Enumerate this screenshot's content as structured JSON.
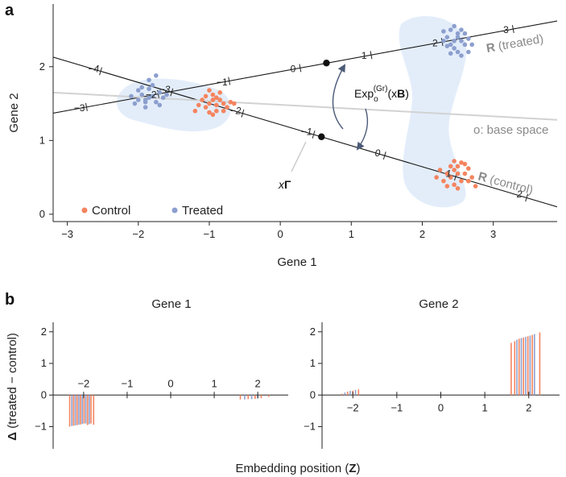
{
  "panels": {
    "a": "a",
    "b": "b"
  },
  "colors": {
    "control": "#f4845f",
    "treated": "#8c9fce",
    "blob": "#e3edfa",
    "base_line": "#d2d2d2",
    "arrow": "#4b5a78",
    "label_grey": "#8a8a8a"
  },
  "panel_a": {
    "annotations": {
      "treated_line_bold": "R",
      "treated_line_rest": " (treated)",
      "control_line_bold": "R",
      "control_line_rest": " (control)",
      "base_space": "o: base space",
      "exp_main": "Exp",
      "exp_sub": "o",
      "exp_sup": "(Gr)",
      "exp_arg_open": "(x",
      "exp_arg_bold": "B",
      "exp_arg_close": ")",
      "xgamma_x": "x",
      "xgamma_g": "Γ"
    },
    "legend": [
      {
        "label": "Control",
        "color": "#f4845f"
      },
      {
        "label": "Treated",
        "color": "#8c9fce"
      }
    ]
  },
  "chart_data": [
    {
      "type": "scatter",
      "panel": "a",
      "title": "",
      "xlabel": "Gene 1",
      "ylabel": "Gene 2",
      "xlim": [
        -3.2,
        3.9
      ],
      "ylim": [
        -0.1,
        2.85
      ],
      "xticks": [
        "−3",
        "−2",
        "−1",
        "0",
        "1",
        "2",
        "3"
      ],
      "yticks": [
        "0",
        "1",
        "2"
      ],
      "grid": false,
      "legend_position": "bottom-left",
      "lines": [
        {
          "name": "R (treated)",
          "from": [
            -3.2,
            1.37
          ],
          "to": [
            3.9,
            2.62
          ],
          "color": "#1a1a1a",
          "tick_labels": [
            {
              "label": "−3",
              "pos": [
                -2.83,
                1.44
              ]
            },
            {
              "label": "−2",
              "pos": [
                -1.82,
                1.62
              ]
            },
            {
              "label": "−1",
              "pos": [
                -0.82,
                1.79
              ]
            },
            {
              "label": "0",
              "pos": [
                0.18,
                1.97
              ]
            },
            {
              "label": "1",
              "pos": [
                1.18,
                2.15
              ]
            },
            {
              "label": "2",
              "pos": [
                2.18,
                2.32
              ]
            },
            {
              "label": "3",
              "pos": [
                3.18,
                2.5
              ]
            }
          ]
        },
        {
          "name": "R (control)",
          "from": [
            -3.2,
            2.13
          ],
          "to": [
            3.9,
            0.1
          ],
          "color": "#1a1a1a",
          "tick_labels": [
            {
              "label": "−4",
              "pos": [
                -2.63,
                1.97
              ]
            },
            {
              "label": "−3",
              "pos": [
                -1.63,
                1.69
              ]
            },
            {
              "label": "−2",
              "pos": [
                -0.63,
                1.4
              ]
            },
            {
              "label": "−1",
              "pos": [
                0.37,
                1.12
              ]
            },
            {
              "label": "0",
              "pos": [
                1.37,
                0.83
              ]
            },
            {
              "label": "1",
              "pos": [
                2.37,
                0.55
              ]
            },
            {
              "label": "2",
              "pos": [
                3.37,
                0.27
              ]
            }
          ]
        },
        {
          "name": "o: base space",
          "from": [
            -3.2,
            1.65
          ],
          "to": [
            3.9,
            1.28
          ],
          "color": "#d2d2d2"
        }
      ],
      "points_on_lines": [
        {
          "line": "R (treated)",
          "at": [
            0.65,
            2.05
          ]
        },
        {
          "line": "R (control)",
          "at": [
            0.58,
            1.05
          ]
        }
      ],
      "series": [
        {
          "name": "Control",
          "color": "#f4845f",
          "points": [
            [
              -0.95,
              1.55
            ],
            [
              -1.0,
              1.5
            ],
            [
              -0.9,
              1.48
            ],
            [
              -0.85,
              1.55
            ],
            [
              -1.05,
              1.45
            ],
            [
              -0.8,
              1.5
            ],
            [
              -0.95,
              1.62
            ],
            [
              -1.1,
              1.55
            ],
            [
              -0.75,
              1.45
            ],
            [
              -0.9,
              1.4
            ],
            [
              -1.0,
              1.38
            ],
            [
              -0.85,
              1.65
            ],
            [
              -1.15,
              1.48
            ],
            [
              -0.7,
              1.52
            ],
            [
              -0.95,
              1.35
            ],
            [
              -1.05,
              1.6
            ],
            [
              -0.8,
              1.4
            ],
            [
              -1.2,
              1.4
            ],
            [
              -0.65,
              1.5
            ],
            [
              -0.9,
              1.58
            ],
            [
              -1.0,
              1.68
            ],
            [
              2.45,
              0.6
            ],
            [
              2.5,
              0.55
            ],
            [
              2.4,
              0.5
            ],
            [
              2.55,
              0.45
            ],
            [
              2.35,
              0.55
            ],
            [
              2.6,
              0.55
            ],
            [
              2.5,
              0.65
            ],
            [
              2.3,
              0.45
            ],
            [
              2.65,
              0.45
            ],
            [
              2.45,
              0.4
            ],
            [
              2.55,
              0.7
            ],
            [
              2.4,
              0.65
            ],
            [
              2.7,
              0.5
            ],
            [
              2.25,
              0.6
            ],
            [
              2.5,
              0.35
            ],
            [
              2.6,
              0.68
            ],
            [
              2.35,
              0.38
            ],
            [
              2.75,
              0.38
            ],
            [
              2.2,
              0.5
            ],
            [
              2.45,
              0.72
            ],
            [
              2.65,
              0.62
            ]
          ]
        },
        {
          "name": "Treated",
          "color": "#8c9fce",
          "points": [
            [
              -1.85,
              1.58
            ],
            [
              -1.9,
              1.55
            ],
            [
              -1.8,
              1.6
            ],
            [
              -1.75,
              1.52
            ],
            [
              -1.95,
              1.62
            ],
            [
              -2.0,
              1.55
            ],
            [
              -1.7,
              1.65
            ],
            [
              -1.85,
              1.7
            ],
            [
              -2.05,
              1.5
            ],
            [
              -1.65,
              1.58
            ],
            [
              -1.9,
              1.45
            ],
            [
              -1.8,
              1.75
            ],
            [
              -2.1,
              1.6
            ],
            [
              -1.7,
              1.48
            ],
            [
              -1.95,
              1.72
            ],
            [
              -1.85,
              1.82
            ],
            [
              -1.75,
              1.88
            ],
            [
              -2.0,
              1.68
            ],
            [
              -1.6,
              1.62
            ],
            [
              -1.9,
              1.52
            ],
            [
              2.45,
              2.35
            ],
            [
              2.5,
              2.4
            ],
            [
              2.4,
              2.3
            ],
            [
              2.55,
              2.35
            ],
            [
              2.35,
              2.4
            ],
            [
              2.6,
              2.3
            ],
            [
              2.5,
              2.45
            ],
            [
              2.3,
              2.35
            ],
            [
              2.45,
              2.25
            ],
            [
              2.55,
              2.5
            ],
            [
              2.4,
              2.5
            ],
            [
              2.65,
              2.38
            ],
            [
              2.5,
              2.2
            ],
            [
              2.35,
              2.28
            ],
            [
              2.6,
              2.45
            ],
            [
              2.45,
              2.55
            ],
            [
              2.55,
              2.15
            ],
            [
              2.3,
              2.48
            ],
            [
              2.7,
              2.3
            ],
            [
              2.4,
              2.18
            ],
            [
              2.65,
              2.2
            ]
          ]
        }
      ]
    },
    {
      "type": "bar",
      "panel": "b",
      "title": "Gene 1",
      "ylabel": "Δ (treated − control)",
      "xlim": [
        -2.7,
        2.7
      ],
      "ylim": [
        -1.7,
        2.3
      ],
      "xticks": [
        "−2",
        "−1",
        "0",
        "1",
        "2"
      ],
      "yticks": [
        "−1",
        "0",
        "1",
        "2"
      ],
      "grid": false,
      "bars": [
        {
          "x": -2.32,
          "value": -1.0,
          "color": "#f4845f"
        },
        {
          "x": -2.27,
          "value": -0.98,
          "color": "#8c9fce"
        },
        {
          "x": -2.23,
          "value": -0.97,
          "color": "#f4845f"
        },
        {
          "x": -2.19,
          "value": -0.96,
          "color": "#8c9fce"
        },
        {
          "x": -2.15,
          "value": -0.95,
          "color": "#f4845f"
        },
        {
          "x": -2.11,
          "value": -0.94,
          "color": "#8c9fce"
        },
        {
          "x": -2.07,
          "value": -0.93,
          "color": "#f4845f"
        },
        {
          "x": -2.03,
          "value": -0.92,
          "color": "#8c9fce"
        },
        {
          "x": -1.99,
          "value": -0.9,
          "color": "#f4845f"
        },
        {
          "x": -1.95,
          "value": -0.9,
          "color": "#8c9fce"
        },
        {
          "x": -1.91,
          "value": -0.95,
          "color": "#f4845f"
        },
        {
          "x": -1.87,
          "value": -0.92,
          "color": "#8c9fce"
        },
        {
          "x": -1.83,
          "value": -0.9,
          "color": "#f4845f"
        },
        {
          "x": -1.77,
          "value": -0.94,
          "color": "#f4845f"
        },
        {
          "x": 1.6,
          "value": -0.14,
          "color": "#f4845f"
        },
        {
          "x": 1.7,
          "value": -0.14,
          "color": "#8c9fce"
        },
        {
          "x": 1.78,
          "value": -0.13,
          "color": "#f4845f"
        },
        {
          "x": 1.86,
          "value": -0.13,
          "color": "#8c9fce"
        },
        {
          "x": 1.94,
          "value": -0.12,
          "color": "#f4845f"
        },
        {
          "x": 2.0,
          "value": -0.11,
          "color": "#8c9fce"
        },
        {
          "x": 2.08,
          "value": -0.1,
          "color": "#f4845f"
        },
        {
          "x": 2.25,
          "value": -0.06,
          "color": "#f4845f"
        }
      ]
    },
    {
      "type": "bar",
      "panel": "b",
      "title": "Gene 2",
      "ylabel": "",
      "xlim": [
        -2.7,
        2.7
      ],
      "ylim": [
        -1.7,
        2.3
      ],
      "xticks": [
        "−2",
        "−1",
        "0",
        "1",
        "2"
      ],
      "yticks": [
        "−1",
        "0",
        "1",
        "2"
      ],
      "grid": false,
      "bars": [
        {
          "x": -2.25,
          "value": 0.04,
          "color": "#f4845f"
        },
        {
          "x": -2.18,
          "value": 0.08,
          "color": "#8c9fce"
        },
        {
          "x": -2.12,
          "value": 0.11,
          "color": "#f4845f"
        },
        {
          "x": -2.06,
          "value": 0.13,
          "color": "#8c9fce"
        },
        {
          "x": -2.0,
          "value": 0.14,
          "color": "#f4845f"
        },
        {
          "x": -1.94,
          "value": 0.16,
          "color": "#8c9fce"
        },
        {
          "x": -1.87,
          "value": 0.18,
          "color": "#f4845f"
        },
        {
          "x": 1.6,
          "value": 1.65,
          "color": "#f4845f"
        },
        {
          "x": 1.68,
          "value": 1.7,
          "color": "#f4845f"
        },
        {
          "x": 1.73,
          "value": 1.75,
          "color": "#8c9fce"
        },
        {
          "x": 1.78,
          "value": 1.78,
          "color": "#f4845f"
        },
        {
          "x": 1.83,
          "value": 1.8,
          "color": "#8c9fce"
        },
        {
          "x": 1.88,
          "value": 1.82,
          "color": "#f4845f"
        },
        {
          "x": 1.93,
          "value": 1.84,
          "color": "#8c9fce"
        },
        {
          "x": 1.98,
          "value": 1.86,
          "color": "#f4845f"
        },
        {
          "x": 2.03,
          "value": 1.88,
          "color": "#8c9fce"
        },
        {
          "x": 2.08,
          "value": 1.9,
          "color": "#f4845f"
        },
        {
          "x": 2.13,
          "value": 1.93,
          "color": "#8c9fce"
        },
        {
          "x": 2.25,
          "value": 1.98,
          "color": "#f4845f"
        }
      ]
    }
  ],
  "panel_b": {
    "shared_xlabel_prefix": "Embedding position (",
    "shared_xlabel_bold": "Z",
    "shared_xlabel_suffix": ")"
  }
}
